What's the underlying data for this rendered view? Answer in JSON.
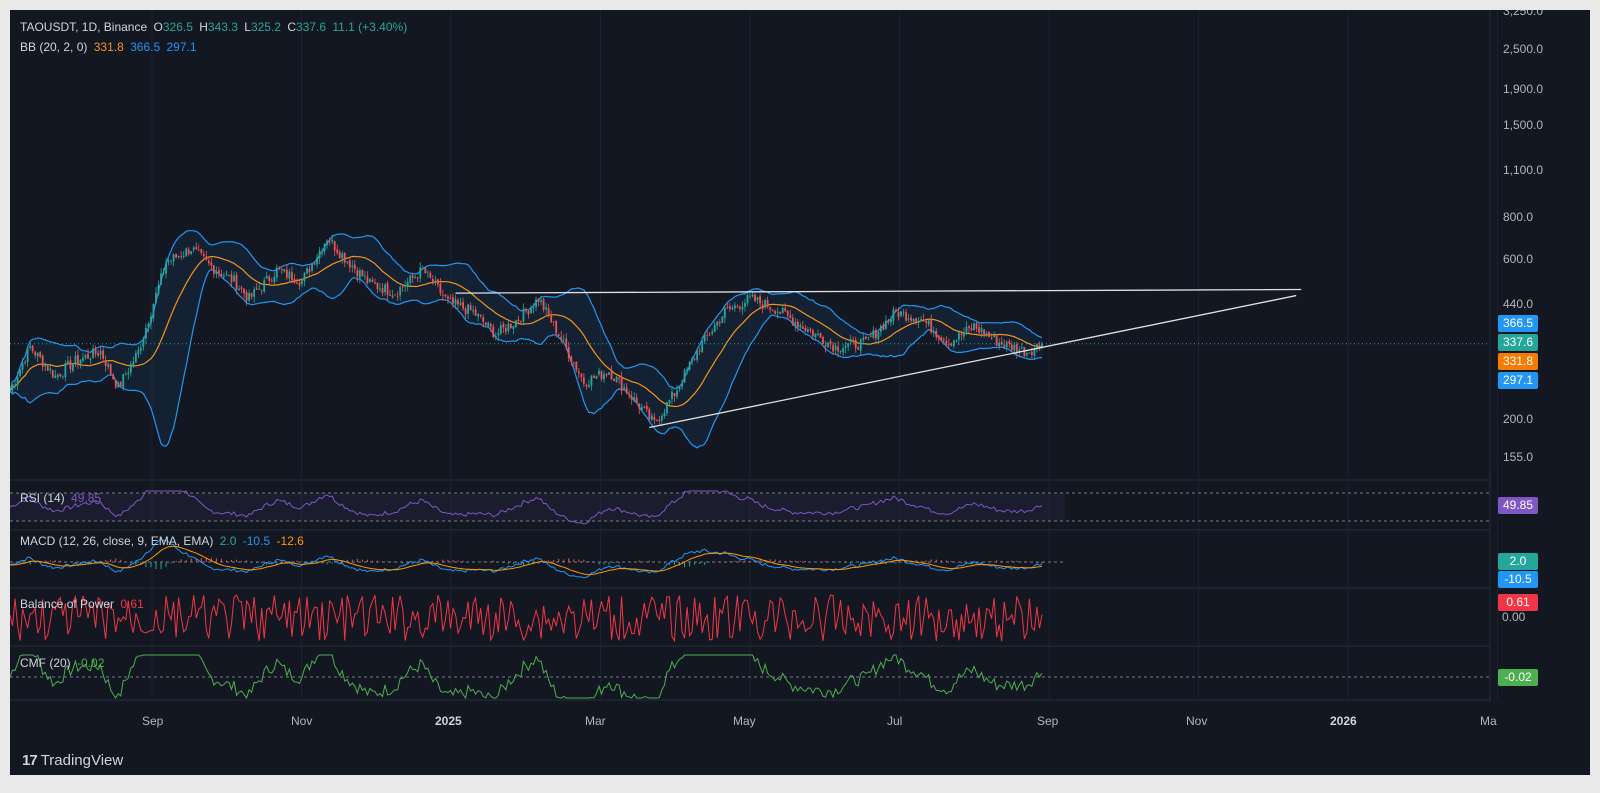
{
  "header": {
    "symbol": "TAOUSDT, 1D, Binance",
    "o_label": "O",
    "o": "326.5",
    "h_label": "H",
    "h": "343.3",
    "l_label": "L",
    "l": "325.2",
    "c_label": "C",
    "c": "337.6",
    "change": "11.1 (+3.40%)"
  },
  "bb": {
    "label": "BB (20, 2, 0)",
    "basis": "331.8",
    "upper": "366.5",
    "lower": "297.1"
  },
  "rsi": {
    "label": "RSI (14)",
    "value": "49.85"
  },
  "macd": {
    "label": "MACD (12, 26, close, 9, EMA, EMA)",
    "hist": "2.0",
    "macd": "-10.5",
    "signal": "-12.6"
  },
  "bop": {
    "label": "Balance of Power",
    "value": "0.61",
    "zero": "0.00"
  },
  "cmf": {
    "label": "CMF (20)",
    "value": "-0.02"
  },
  "price_tags": {
    "upper": "366.5",
    "close": "337.6",
    "basis": "331.8",
    "lower": "297.1"
  },
  "price_axis": [
    "3,250.0",
    "2,500.0",
    "1,900.0",
    "1,500.0",
    "1,100.0",
    "800.0",
    "600.0",
    "440.0",
    "200.0",
    "155.0"
  ],
  "time_axis": [
    "Sep",
    "Nov",
    "2025",
    "Mar",
    "May",
    "Jul",
    "Sep",
    "Nov",
    "2026",
    "Ma"
  ],
  "brand": "TradingView",
  "colors": {
    "background": "#131722",
    "up": "#26a69a",
    "down": "#ef5350",
    "bb_basis": "#f7931a",
    "bb_band": "#2196f3",
    "rsi": "#7e57c2",
    "macd": "#2196f3",
    "signal": "#ff9800",
    "bop": "#f23645",
    "cmf": "#4caf50",
    "trendline": "#e0e0e0"
  },
  "chart_data": {
    "type": "candlestick",
    "title": "TAOUSDT, 1D, Binance",
    "scale": "log",
    "ylim": [
      140,
      3300
    ],
    "x_range": [
      "2024-07-25",
      "2026-03-05"
    ],
    "price_path": [
      {
        "date": "2024-07-25",
        "close": 245
      },
      {
        "date": "2024-08-02",
        "close": 330
      },
      {
        "date": "2024-08-12",
        "close": 270
      },
      {
        "date": "2024-08-20",
        "close": 300
      },
      {
        "date": "2024-08-30",
        "close": 320
      },
      {
        "date": "2024-09-06",
        "close": 250
      },
      {
        "date": "2024-09-14",
        "close": 320
      },
      {
        "date": "2024-09-25",
        "close": 590
      },
      {
        "date": "2024-10-05",
        "close": 650
      },
      {
        "date": "2024-10-12",
        "close": 580
      },
      {
        "date": "2024-10-22",
        "close": 520
      },
      {
        "date": "2024-10-28",
        "close": 460
      },
      {
        "date": "2024-11-08",
        "close": 560
      },
      {
        "date": "2024-11-18",
        "close": 520
      },
      {
        "date": "2024-11-28",
        "close": 700
      },
      {
        "date": "2024-12-05",
        "close": 610
      },
      {
        "date": "2024-12-15",
        "close": 510
      },
      {
        "date": "2024-12-25",
        "close": 480
      },
      {
        "date": "2025-01-05",
        "close": 560
      },
      {
        "date": "2025-01-15",
        "close": 450
      },
      {
        "date": "2025-01-25",
        "close": 420
      },
      {
        "date": "2025-02-03",
        "close": 360
      },
      {
        "date": "2025-02-12",
        "close": 400
      },
      {
        "date": "2025-02-20",
        "close": 460
      },
      {
        "date": "2025-03-01",
        "close": 350
      },
      {
        "date": "2025-03-10",
        "close": 260
      },
      {
        "date": "2025-03-20",
        "close": 280
      },
      {
        "date": "2025-03-28",
        "close": 240
      },
      {
        "date": "2025-04-07",
        "close": 195
      },
      {
        "date": "2025-04-15",
        "close": 240
      },
      {
        "date": "2025-04-25",
        "close": 330
      },
      {
        "date": "2025-05-05",
        "close": 420
      },
      {
        "date": "2025-05-15",
        "close": 460
      },
      {
        "date": "2025-05-25",
        "close": 430
      },
      {
        "date": "2025-06-05",
        "close": 380
      },
      {
        "date": "2025-06-18",
        "close": 330
      },
      {
        "date": "2025-06-30",
        "close": 340
      },
      {
        "date": "2025-07-12",
        "close": 420
      },
      {
        "date": "2025-07-22",
        "close": 400
      },
      {
        "date": "2025-08-02",
        "close": 340
      },
      {
        "date": "2025-08-12",
        "close": 380
      },
      {
        "date": "2025-08-22",
        "close": 340
      },
      {
        "date": "2025-09-02",
        "close": 320
      },
      {
        "date": "2025-09-08",
        "close": 337.6
      }
    ],
    "last_candle": {
      "open": 326.5,
      "high": 343.3,
      "low": 325.2,
      "close": 337.6
    },
    "bollinger": {
      "length": 20,
      "mult": 2,
      "basis": 331.8,
      "upper": 366.5,
      "lower": 297.1
    },
    "trendlines": [
      {
        "name": "resistance",
        "points": [
          [
            "2025-01-18",
            478
          ],
          [
            "2025-12-20",
            490
          ]
        ]
      },
      {
        "name": "support",
        "points": [
          [
            "2025-04-05",
            190
          ],
          [
            "2025-12-18",
            470
          ]
        ]
      }
    ],
    "indicators": {
      "rsi": {
        "length": 14,
        "value": 49.85
      },
      "macd": {
        "fast": 12,
        "slow": 26,
        "signal_len": 9,
        "histogram": 2.0,
        "macd": -10.5,
        "signal": -12.6
      },
      "bop": {
        "value": 0.61
      },
      "cmf": {
        "length": 20,
        "value": -0.02
      }
    }
  }
}
